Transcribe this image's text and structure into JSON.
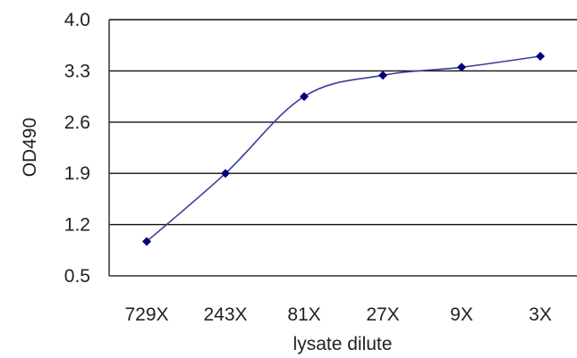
{
  "chart_data": {
    "type": "line",
    "title": "",
    "xlabel": "lysate dilute",
    "ylabel": "OD490",
    "categories": [
      "729X",
      "243X",
      "81X",
      "27X",
      "9X",
      "3X"
    ],
    "series": [
      {
        "values": [
          0.97,
          1.9,
          2.95,
          3.24,
          3.35,
          3.5
        ]
      }
    ],
    "ylim": [
      0.5,
      4.0
    ],
    "yticks": [
      "0.5",
      "1.2",
      "1.9",
      "2.6",
      "3.3",
      "4.0"
    ],
    "grid": true,
    "legend": "none",
    "colors": {
      "line": "#3c3c9c",
      "marker": "#00007a",
      "grid": "#111111",
      "frame": "#333333"
    }
  }
}
